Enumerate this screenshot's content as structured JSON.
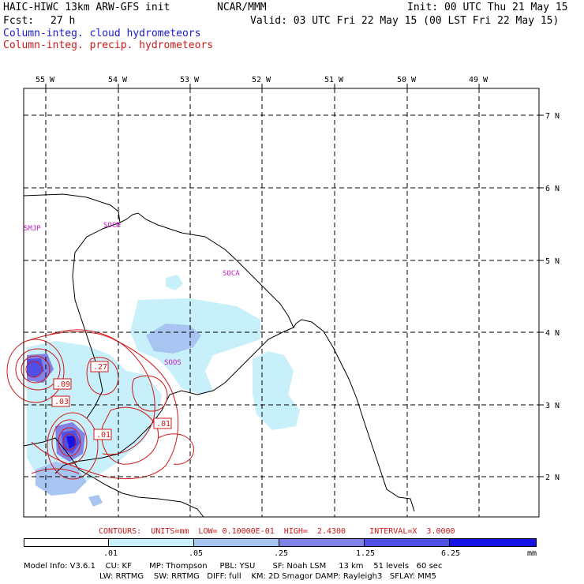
{
  "header": {
    "model": "HAIC-HIWC 13km ARW-GFS init",
    "org": "NCAR/MMM",
    "init": "Init: 00 UTC Thu 21 May 15",
    "fcst_label": "Fcst:",
    "fcst_value": "27 h",
    "valid": "Valid: 03 UTC Fri 22 May 15 (00 LST Fri 22 May 15)",
    "field1": "Column-integ. cloud hydrometeors",
    "field2": "Column-integ. precip. hydrometeors"
  },
  "map": {
    "lon_labels": [
      "55 W",
      "54 W",
      "53 W",
      "52 W",
      "51 W",
      "50 W",
      "49 W"
    ],
    "lat_labels": [
      "7 N",
      "6 N",
      "5 N",
      "4 N",
      "3 N",
      "2 N"
    ],
    "stations": [
      "SMJP",
      "SOCM",
      "SOCA",
      "SOOS"
    ],
    "contour_labels": [
      ".27",
      ".09",
      ".03",
      ".01",
      ".01"
    ]
  },
  "contour_info": {
    "text": "CONTOURS:  UNITS=mm  LOW= 0.10000E-01  HIGH=  2.4300     INTERVAL=X  3.0000"
  },
  "colorbar": {
    "labels": [
      ".01",
      ".05",
      ".25",
      "1.25",
      "6.25"
    ],
    "units": "mm",
    "colors": [
      "#ffffff",
      "#c8f0fa",
      "#a8c4f0",
      "#8282e6",
      "#5050e6",
      "#1414e6"
    ]
  },
  "model_info": {
    "line1": "Model Info: V3.6.1    CU: KF       MP: Thompson     PBL: YSU       SF: Noah LSM     13 km    51 levels   60 sec",
    "line2": "LW: RRTMG    SW: RRTMG   DIFF: full    KM: 2D Smagor DAMP: Rayleigh3   SFLAY: MM5"
  }
}
